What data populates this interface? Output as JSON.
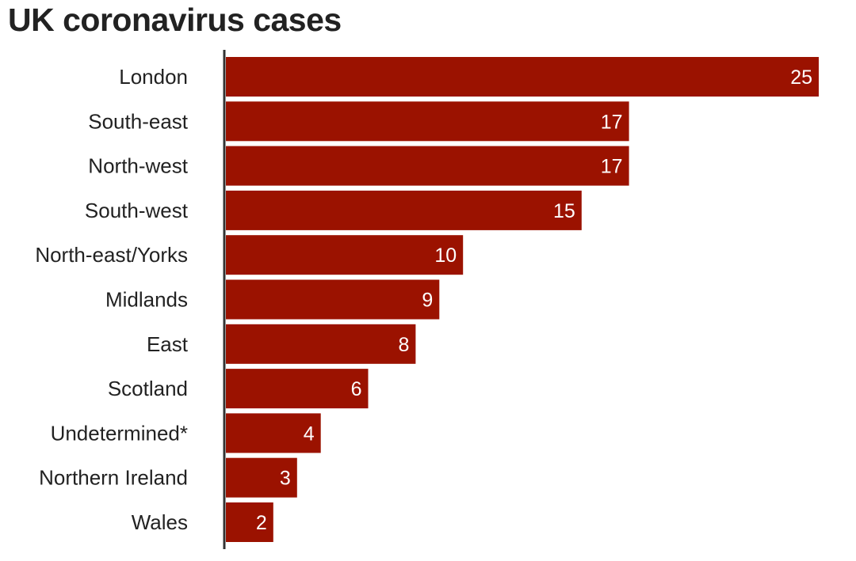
{
  "chart_data": {
    "type": "bar",
    "orientation": "horizontal",
    "title": "UK coronavirus cases",
    "categories": [
      "London",
      "South-east",
      "North-west",
      "South-west",
      "North-east/Yorks",
      "Midlands",
      "East",
      "Scotland",
      "Undetermined*",
      "Northern Ireland",
      "Wales"
    ],
    "values": [
      25,
      17,
      17,
      15,
      10,
      9,
      8,
      6,
      4,
      3,
      2
    ],
    "xlabel": "",
    "ylabel": "",
    "xlim": [
      0,
      25
    ],
    "grid": false,
    "bar_color": "#9b1200",
    "label_color": "#ffffff"
  }
}
